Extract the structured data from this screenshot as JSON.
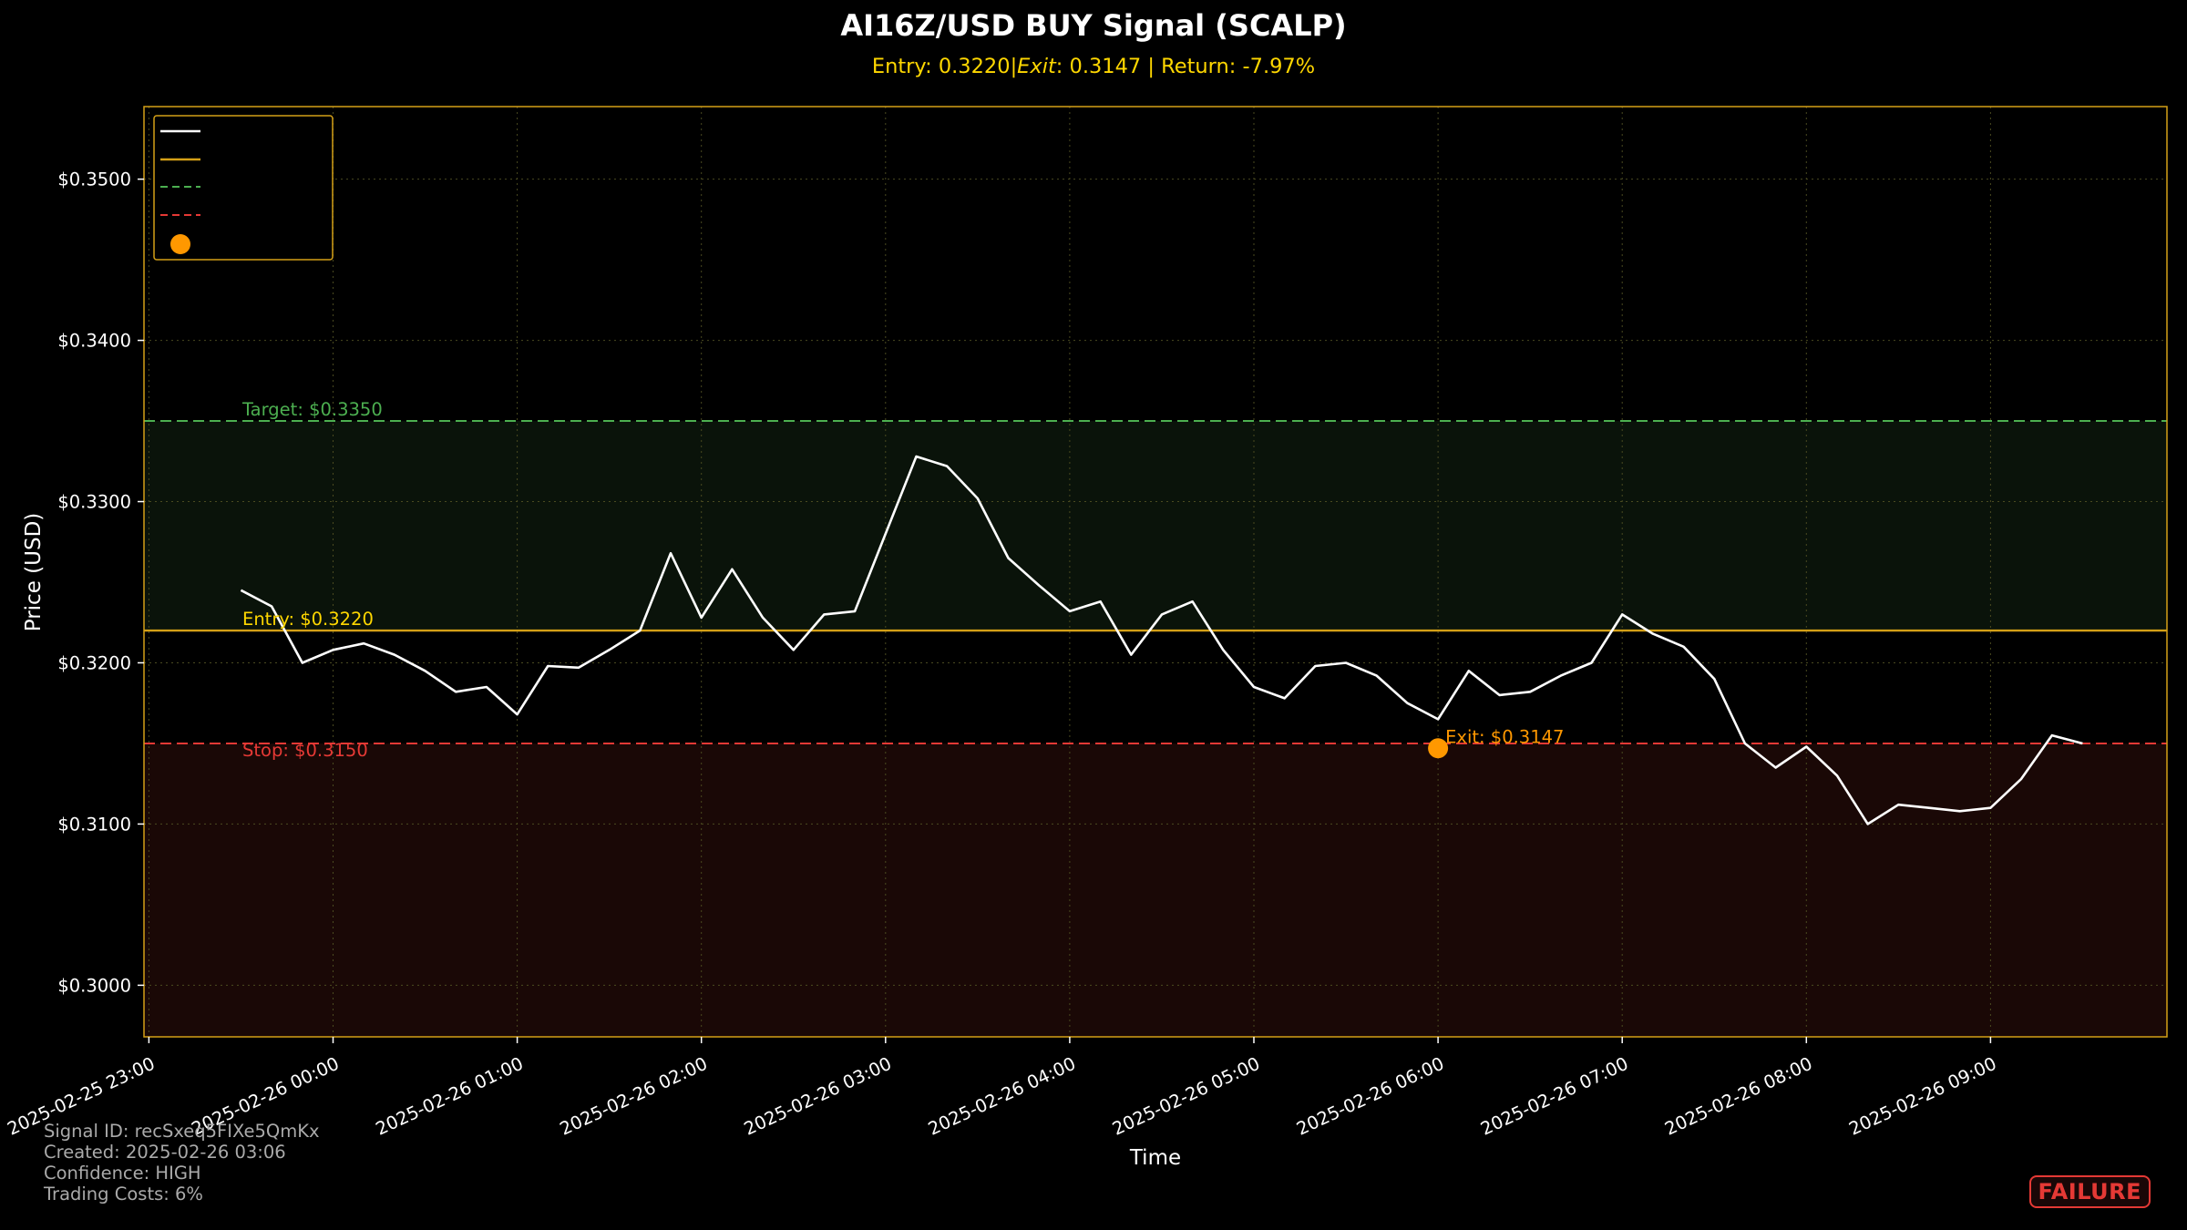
{
  "chart_data": {
    "type": "line",
    "title": "AI16Z/USD BUY Signal (SCALP)",
    "subtitle": "Entry: 0.3220|$Exit$: 0.3147 | Return: -7.97%",
    "subtitle_parts": {
      "entry": "Entry: 0.3220|",
      "exit_label": "Exit",
      "rest": ": 0.3147 | Return: -7.97%"
    },
    "xlabel": "Time",
    "ylabel": "Price (USD)",
    "ylim": [
      0.2968,
      0.3545
    ],
    "y_ticks": [
      0.3,
      0.31,
      0.32,
      0.33,
      0.34,
      0.35
    ],
    "y_tick_labels": [
      "$0.3000",
      "$0.3100",
      "$0.3200",
      "$0.3300",
      "$0.3400",
      "$0.3500"
    ],
    "x_ticks": [
      "2025-02-25 23:00",
      "2025-02-26 00:00",
      "2025-02-26 01:00",
      "2025-02-26 02:00",
      "2025-02-26 03:00",
      "2025-02-26 04:00",
      "2025-02-26 05:00",
      "2025-02-26 06:00",
      "2025-02-26 07:00",
      "2025-02-26 08:00",
      "2025-02-26 09:00"
    ],
    "grid": true,
    "legend_placement": "top-left",
    "entry": {
      "value": 0.322,
      "label": "Entry: $0.3220",
      "color": "#ffd700"
    },
    "target": {
      "value": 0.335,
      "label": "Target: $0.3350",
      "color": "#4caf50"
    },
    "stop": {
      "value": 0.315,
      "label": "Stop: $0.3150",
      "color": "#e53935"
    },
    "exit": {
      "x": "2025-02-26 06:00",
      "value": 0.3147,
      "label": "Exit: $0.3147",
      "color": "#ff9800"
    },
    "colors": {
      "price": "#ffffff",
      "accent": "#d4a017",
      "grid": "#4a4a20",
      "target_zone": "#0a130a",
      "stop_zone": "#1a0806"
    },
    "series": [
      {
        "x": [
          "2025-02-25 23:30",
          "2025-02-25 23:40",
          "2025-02-25 23:50",
          "2025-02-26 00:00",
          "2025-02-26 00:10",
          "2025-02-26 00:20",
          "2025-02-26 00:30",
          "2025-02-26 00:40",
          "2025-02-26 00:50",
          "2025-02-26 01:00",
          "2025-02-26 01:10",
          "2025-02-26 01:20",
          "2025-02-26 01:30",
          "2025-02-26 01:40",
          "2025-02-26 01:50",
          "2025-02-26 02:00",
          "2025-02-26 02:10",
          "2025-02-26 02:20",
          "2025-02-26 02:30",
          "2025-02-26 02:40",
          "2025-02-26 02:50",
          "2025-02-26 03:00",
          "2025-02-26 03:10",
          "2025-02-26 03:20",
          "2025-02-26 03:30",
          "2025-02-26 03:40",
          "2025-02-26 03:50",
          "2025-02-26 04:00",
          "2025-02-26 04:10",
          "2025-02-26 04:20",
          "2025-02-26 04:30",
          "2025-02-26 04:40",
          "2025-02-26 04:50",
          "2025-02-26 05:00",
          "2025-02-26 05:10",
          "2025-02-26 05:20",
          "2025-02-26 05:30",
          "2025-02-26 05:40",
          "2025-02-26 05:50",
          "2025-02-26 06:00",
          "2025-02-26 06:10",
          "2025-02-26 06:20",
          "2025-02-26 06:30",
          "2025-02-26 06:40",
          "2025-02-26 06:50",
          "2025-02-26 07:00",
          "2025-02-26 07:10",
          "2025-02-26 07:20",
          "2025-02-26 07:30",
          "2025-02-26 07:40",
          "2025-02-26 07:50",
          "2025-02-26 08:00",
          "2025-02-26 08:10",
          "2025-02-26 08:20",
          "2025-02-26 08:30",
          "2025-02-26 08:40",
          "2025-02-26 08:50",
          "2025-02-26 09:00",
          "2025-02-26 09:10",
          "2025-02-26 09:20",
          "2025-02-26 09:30"
        ],
        "values": [
          0.3245,
          0.3235,
          0.32,
          0.3208,
          0.3212,
          0.3205,
          0.3195,
          0.3182,
          0.3185,
          0.3168,
          0.3198,
          0.3197,
          0.3208,
          0.322,
          0.3268,
          0.3228,
          0.3258,
          0.3228,
          0.3208,
          0.323,
          0.3232,
          0.328,
          0.3328,
          0.3322,
          0.3302,
          0.3265,
          0.3248,
          0.3232,
          0.3238,
          0.3205,
          0.323,
          0.3238,
          0.3208,
          0.3185,
          0.3178,
          0.3198,
          0.32,
          0.3192,
          0.3175,
          0.3165,
          0.3195,
          0.318,
          0.3182,
          0.3192,
          0.32,
          0.323,
          0.3218,
          0.321,
          0.319,
          0.315,
          0.3135,
          0.3148,
          0.313,
          0.31,
          0.3112,
          0.311,
          0.3108,
          0.311,
          0.3128,
          0.3155,
          0.315
        ]
      }
    ]
  },
  "info": {
    "signal_id": "Signal ID: recSxeq5FIXe5QmKx",
    "created": "Created: 2025-02-26 03:06",
    "confidence": "Confidence: HIGH",
    "trading_costs": "Trading Costs: 6%"
  },
  "status": "FAILURE"
}
